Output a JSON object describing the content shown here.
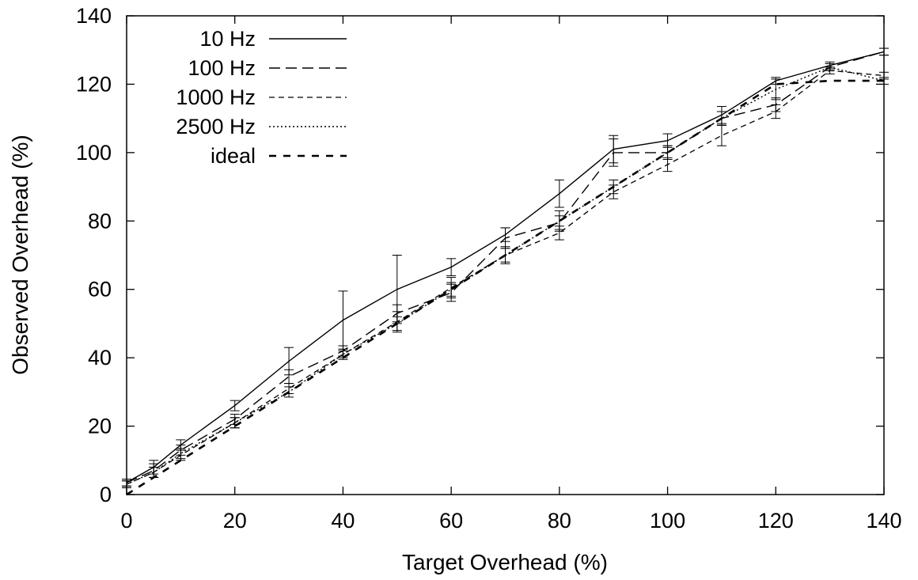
{
  "chart_data": {
    "type": "line",
    "title": "",
    "xlabel": "Target Overhead (%)",
    "ylabel": "Observed Overhead (%)",
    "xlim": [
      0,
      140
    ],
    "ylim": [
      0,
      140
    ],
    "xticks": [
      0,
      20,
      40,
      60,
      80,
      100,
      120,
      140
    ],
    "yticks": [
      0,
      20,
      40,
      60,
      80,
      100,
      120,
      140
    ],
    "grid": false,
    "legend_position": "top-left",
    "x": [
      0,
      5,
      10,
      20,
      30,
      40,
      50,
      60,
      70,
      80,
      90,
      100,
      110,
      120,
      130,
      140
    ],
    "series": [
      {
        "name": "10 Hz",
        "dash": "solid",
        "values": [
          3.5,
          8,
          14.5,
          26,
          39,
          51,
          60,
          66.5,
          76,
          88,
          101,
          103.5,
          111,
          121,
          125.5,
          129.5
        ],
        "err": [
          1,
          2,
          1.5,
          1.5,
          4,
          8.5,
          10,
          2.5,
          2,
          4,
          4,
          2,
          2.5,
          1,
          1,
          1
        ]
      },
      {
        "name": "100 Hz",
        "dash": "long",
        "values": [
          3.5,
          7,
          13,
          22,
          34.5,
          42,
          53,
          59,
          75,
          79.5,
          100,
          100,
          110,
          114,
          125,
          129.5
        ],
        "err": [
          1,
          2,
          1.5,
          1.5,
          2,
          1.5,
          2.5,
          2.5,
          3,
          2,
          4,
          2,
          2,
          2,
          1,
          1
        ]
      },
      {
        "name": "1000 Hz",
        "dash": "medium",
        "values": [
          3,
          6.5,
          11.5,
          21,
          31,
          41,
          50.5,
          60.5,
          70,
          76.5,
          88.5,
          96.5,
          105,
          112,
          124,
          122.5
        ],
        "err": [
          1,
          1.5,
          1.5,
          1.5,
          1.5,
          1.5,
          3,
          3,
          2.5,
          2,
          2,
          2,
          3,
          2,
          1,
          1
        ]
      },
      {
        "name": "2500 Hz",
        "dash": "dotted",
        "values": [
          3,
          6.5,
          12,
          21,
          30,
          41,
          50,
          60,
          70,
          80,
          90,
          100,
          110,
          118.5,
          125,
          121
        ],
        "err": [
          1,
          1.5,
          1.5,
          1.5,
          1.5,
          1,
          2,
          2,
          2,
          3,
          2,
          2,
          2,
          3,
          1,
          1
        ]
      },
      {
        "name": "ideal",
        "dash": "thick-dash",
        "values": [
          0,
          5,
          10,
          20,
          30,
          40,
          50,
          60,
          70,
          80,
          90,
          100,
          110,
          120,
          121,
          121
        ],
        "err": null
      }
    ]
  }
}
